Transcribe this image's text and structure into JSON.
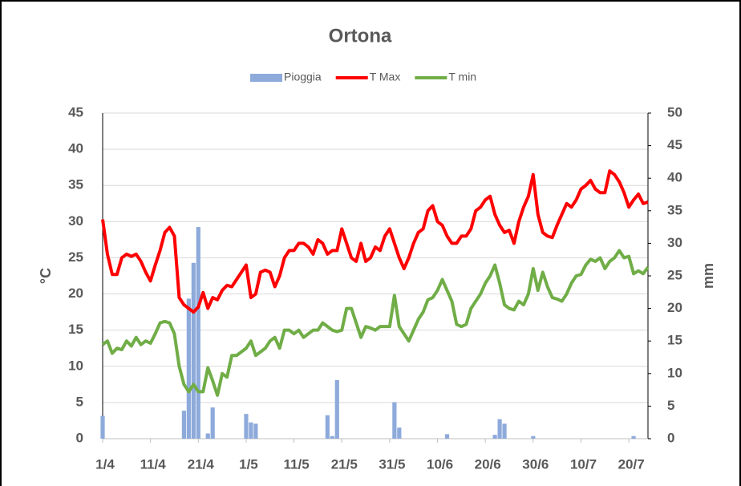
{
  "chart_data": {
    "type": "combo",
    "title": "Ortona",
    "ylabel": "°C",
    "y2label": "mm",
    "categories": [
      "1/4",
      null,
      null,
      null,
      null,
      null,
      null,
      null,
      null,
      null,
      "11/4",
      null,
      null,
      null,
      null,
      null,
      null,
      null,
      null,
      null,
      "21/4",
      null,
      null,
      null,
      null,
      null,
      null,
      null,
      null,
      null,
      "1/5",
      null,
      null,
      null,
      null,
      null,
      null,
      null,
      null,
      null,
      "11/5",
      null,
      null,
      null,
      null,
      null,
      null,
      null,
      null,
      null,
      "21/5",
      null,
      null,
      null,
      null,
      null,
      null,
      null,
      null,
      null,
      "31/5",
      null,
      null,
      null,
      null,
      null,
      null,
      null,
      null,
      null,
      "10/6",
      null,
      null,
      null,
      null,
      null,
      null,
      null,
      null,
      null,
      "20/6",
      null,
      null,
      null,
      null,
      null,
      null,
      null,
      null,
      null,
      "30/6",
      null,
      null,
      null,
      null,
      null,
      null,
      null,
      null,
      null,
      "10/7",
      null,
      null,
      null,
      null,
      null,
      null,
      null,
      null,
      null,
      "20/7",
      null,
      null,
      null,
      null
    ],
    "series": [
      {
        "name": "Pioggia",
        "kind": "bar",
        "axis": "y2",
        "color": "#8eaadb",
        "values": [
          3.5,
          0,
          0,
          0,
          0,
          0,
          0,
          0,
          0,
          0,
          0,
          0,
          0,
          0,
          0,
          0,
          0,
          4.3,
          21.5,
          27,
          32.5,
          0,
          0.8,
          4.8,
          0,
          0,
          0,
          0,
          0,
          0,
          3.8,
          2.5,
          2.3,
          0,
          0,
          0,
          0,
          0,
          0,
          0,
          0,
          0,
          0,
          0,
          0,
          0,
          0,
          3.6,
          0.4,
          9,
          0,
          0,
          0,
          0,
          0,
          0,
          0,
          0,
          0,
          0,
          0,
          5.6,
          1.7,
          0,
          0,
          0,
          0,
          0,
          0,
          0,
          0,
          0,
          0.7,
          0,
          0,
          0,
          0,
          0,
          0,
          0,
          0,
          0,
          0.6,
          3,
          2.3,
          0,
          0,
          0,
          0,
          0,
          0.4,
          0,
          0,
          0,
          0,
          0,
          0,
          0,
          0,
          0,
          0,
          0,
          0,
          0,
          0,
          0,
          0,
          0,
          0,
          0,
          0,
          0.4,
          0,
          0,
          0
        ]
      },
      {
        "name": "T Max",
        "kind": "line",
        "color": "#ff0000",
        "values": [
          30.3,
          25.5,
          22.7,
          22.7,
          25,
          25.5,
          25.2,
          25.5,
          24.5,
          23,
          21.8,
          24,
          26,
          28.5,
          29.2,
          28,
          19.5,
          18.5,
          18,
          17.5,
          18.2,
          20.2,
          18,
          19.5,
          19.2,
          20.5,
          21.2,
          21,
          22,
          23,
          24,
          19.5,
          20,
          23,
          23.3,
          23,
          21,
          22.5,
          25,
          26,
          26,
          27,
          27,
          26.5,
          25.5,
          27.5,
          27,
          25.5,
          26,
          26,
          29,
          27,
          25,
          24.5,
          27,
          24.5,
          25,
          26.5,
          26,
          28,
          29,
          27,
          25,
          23.5,
          25,
          27,
          28.5,
          29,
          31.5,
          32.2,
          30,
          29.5,
          28,
          27,
          27,
          28,
          28,
          29,
          31.5,
          32,
          33,
          33.5,
          31,
          29.5,
          28.5,
          28.8,
          27,
          30,
          32,
          33.5,
          36.5,
          31,
          28.5,
          28,
          27.8,
          29.5,
          31,
          32.5,
          32,
          33,
          34.5,
          35,
          35.7,
          34.5,
          34,
          34,
          37,
          36.5,
          35.5,
          34,
          32,
          33,
          33.8,
          32.5,
          32.7
        ]
      },
      {
        "name": "T min",
        "kind": "line",
        "color": "#70ad47",
        "values": [
          13,
          13.5,
          11.8,
          12.5,
          12.3,
          13.5,
          12.8,
          14,
          13,
          13.5,
          13.2,
          14.5,
          16,
          16.2,
          16,
          14.5,
          10,
          7.5,
          6.5,
          7.5,
          6.5,
          6.5,
          9.8,
          8,
          6,
          9,
          8.5,
          11.5,
          11.5,
          12,
          12.5,
          13.5,
          11.5,
          12,
          12.5,
          13.5,
          14,
          12.5,
          15,
          15,
          14.5,
          15,
          14,
          14.5,
          15,
          15,
          16,
          15.5,
          15,
          14.8,
          15,
          18,
          18,
          16,
          14,
          15.5,
          15.3,
          15,
          15.5,
          15.5,
          15.5,
          19.8,
          15.5,
          14.5,
          13.5,
          15,
          16.5,
          17.5,
          19.2,
          19.5,
          20.5,
          22,
          20.5,
          19,
          15.8,
          15.5,
          15.8,
          18,
          19,
          20,
          21.5,
          22.5,
          24,
          21.5,
          18.5,
          18,
          17.8,
          19,
          18.5,
          20,
          23.5,
          20.5,
          23,
          21,
          19.5,
          19.3,
          19,
          20,
          21.5,
          22.5,
          22.7,
          24,
          24.8,
          24.5,
          25,
          23.5,
          24.5,
          25,
          26,
          25,
          25.2,
          22.8,
          23.2,
          22.8,
          23.7
        ]
      }
    ],
    "ylim": [
      0,
      45
    ],
    "yticks": [
      0,
      5,
      10,
      15,
      20,
      25,
      30,
      35,
      40,
      45
    ],
    "y2lim": [
      0,
      50
    ],
    "y2ticks": [
      0,
      5,
      10,
      15,
      20,
      25,
      30,
      35,
      40,
      45,
      50
    ],
    "grid": true,
    "legend": "top"
  }
}
